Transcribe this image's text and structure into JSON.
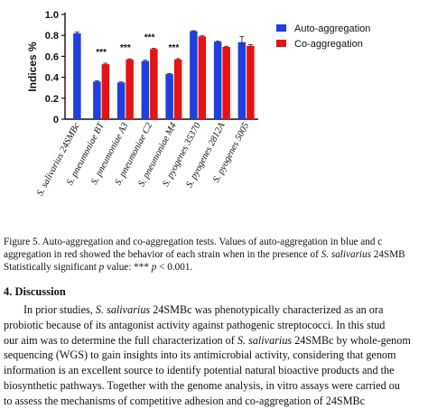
{
  "chart_data": {
    "type": "bar",
    "ylabel": "Indices %",
    "ylim": [
      0,
      1.0
    ],
    "yticks": [
      "0",
      "0.2",
      "0.4",
      "0.6",
      "0.8",
      "1.0"
    ],
    "categories": [
      "S. salivarius 24SMBc",
      "S. pneumoniae BT",
      "S. pneumoniae A3",
      "S. pneumoniae C2",
      "S. pneumoniae M4",
      "S. pyogenes 35370",
      "S. pyogenes 2812A",
      "S. pyogenes 5005"
    ],
    "series": [
      {
        "name": "Auto-aggregation",
        "color": "#1f3fe0",
        "values": [
          0.82,
          0.36,
          0.35,
          0.555,
          0.43,
          0.84,
          0.74,
          0.735
        ],
        "errors": [
          0.012,
          0.008,
          0.006,
          0.008,
          0.006,
          0.005,
          0.006,
          0.055
        ]
      },
      {
        "name": "Co-aggregation",
        "color": "#e81212",
        "values": [
          null,
          0.525,
          0.57,
          0.67,
          0.57,
          0.79,
          0.69,
          0.7
        ],
        "errors": [
          null,
          0.01,
          0.006,
          0.006,
          0.008,
          0.006,
          0.006,
          0.012
        ]
      }
    ],
    "significance": [
      "",
      "***",
      "***",
      "***",
      "***",
      "",
      "",
      ""
    ],
    "legend_position": "top-right"
  },
  "caption": {
    "label": "Figure 5.",
    "line1": "Auto-aggregation and co-aggregation tests. Values of auto-aggregation in blue and c",
    "line2_pre": "aggregation in red showed the behavior of each strain when in the presence of ",
    "line2_italic": "S. salivarius",
    "line2_post": " 24SMB",
    "line3_pre": "Statistically significant ",
    "line3_p": "p",
    "line3_mid": " value: *** ",
    "line3_p2": "p",
    "line3_post": " < 0.001."
  },
  "section_heading": "4. Discussion",
  "body_lines": [
    {
      "pre": "In prior studies, ",
      "italic": "S. salivarius",
      "post": " 24SMBc was phenotypically characterized as an ora"
    },
    {
      "pre": "probiotic because of its antagonist activity against pathogenic streptococci. In this stud",
      "italic": "",
      "post": ""
    },
    {
      "pre": "our aim was to determine the full characterization of ",
      "italic": "S. salivarius",
      "post": " 24SMBc by whole-genom"
    },
    {
      "pre": "sequencing (WGS) to gain insights into its antimicrobial activity, considering that genom",
      "italic": "",
      "post": ""
    },
    {
      "pre": "information is an excellent source to identify potential natural bioactive products and the",
      "italic": "",
      "post": ""
    },
    {
      "pre": "biosynthetic pathways. Together with the genome analysis, in vitro assays were carried ou",
      "italic": "",
      "post": ""
    },
    {
      "pre": "to assess the mechanisms of competitive adhesion and co-aggregation of 24SMBc",
      "italic": "",
      "post": ""
    }
  ]
}
